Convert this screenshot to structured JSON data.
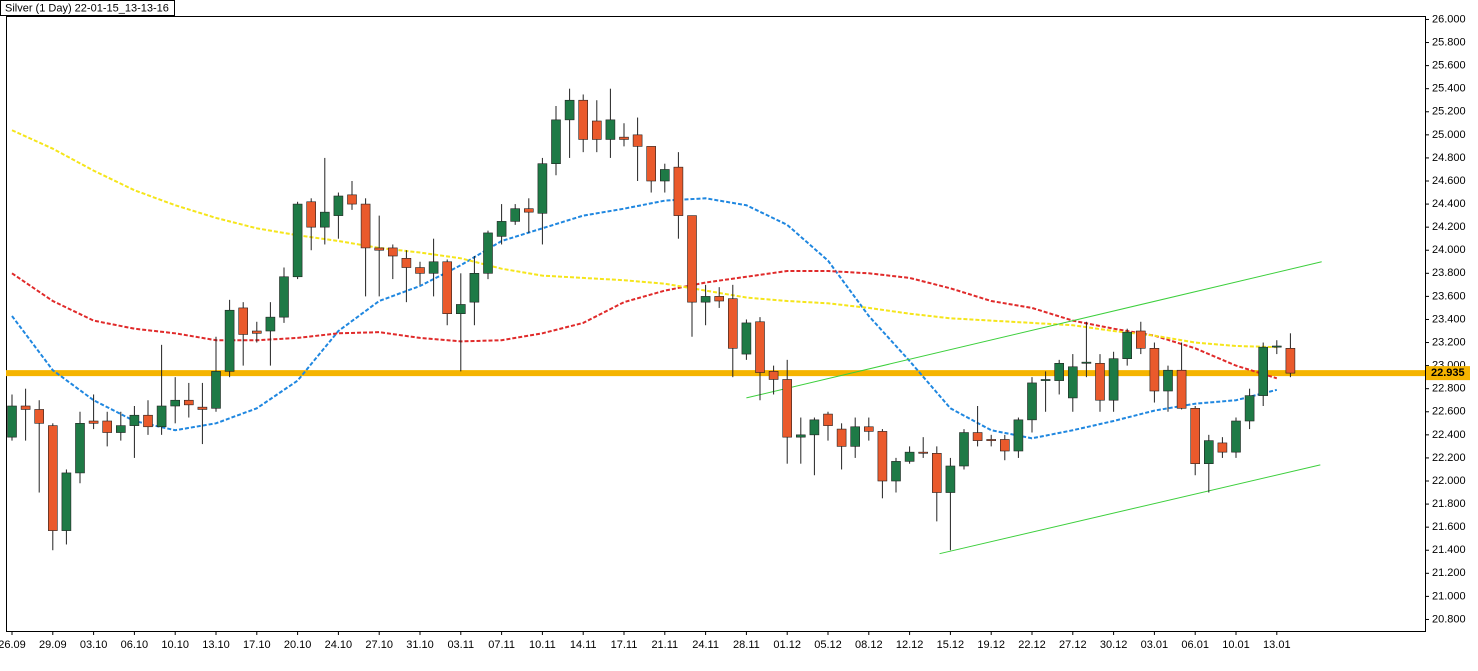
{
  "chart_data": {
    "type": "candlestick",
    "title": "Silver (1 Day) 22-01-15_13-13-16",
    "categories": [
      "26.09",
      null,
      null,
      "29.09",
      null,
      null,
      "03.10",
      null,
      null,
      "06.10",
      null,
      null,
      "10.10",
      null,
      null,
      "13.10",
      null,
      null,
      "17.10",
      null,
      null,
      "20.10",
      null,
      null,
      "24.10",
      null,
      null,
      "27.10",
      null,
      null,
      "31.10",
      null,
      null,
      "03.11",
      null,
      null,
      "07.11",
      null,
      null,
      "10.11",
      null,
      null,
      "14.11",
      null,
      null,
      "17.11",
      null,
      null,
      "21.11",
      null,
      null,
      "24.11",
      null,
      null,
      "28.11",
      null,
      null,
      "01.12",
      null,
      null,
      "05.12",
      null,
      null,
      "08.12",
      null,
      null,
      "12.12",
      null,
      null,
      "15.12",
      null,
      null,
      "19.12",
      null,
      null,
      "22.12",
      null,
      null,
      "27.12",
      null,
      null,
      "30.12",
      null,
      null,
      "03.01",
      null,
      null,
      "06.01",
      null,
      null,
      "10.01",
      null,
      null,
      "13.01",
      null
    ],
    "open": [
      22.38,
      22.65,
      22.62,
      22.48,
      21.57,
      22.07,
      22.52,
      22.52,
      22.42,
      22.48,
      22.57,
      22.47,
      22.65,
      22.7,
      22.64,
      22.63,
      22.95,
      23.5,
      23.3,
      23.3,
      23.42,
      23.77,
      24.42,
      24.2,
      24.3,
      24.48,
      24.4,
      24.02,
      24.02,
      23.93,
      23.85,
      23.8,
      23.9,
      23.45,
      23.55,
      23.8,
      24.12,
      24.25,
      24.36,
      24.32,
      24.75,
      25.13,
      25.3,
      25.12,
      24.96,
      24.98,
      25.0,
      24.9,
      24.6,
      24.72,
      24.3,
      23.55,
      23.6,
      23.58,
      23.1,
      23.38,
      22.95,
      22.88,
      22.38,
      22.4,
      22.58,
      22.45,
      22.3,
      22.47,
      22.43,
      22.0,
      22.17,
      22.25,
      22.24,
      21.9,
      22.13,
      22.42,
      22.36,
      22.36,
      22.26,
      22.53,
      22.87,
      22.87,
      22.72,
      23.02,
      23.02,
      22.7,
      23.06,
      23.3,
      23.15,
      22.78,
      22.96,
      22.63,
      22.15,
      22.33,
      22.25,
      22.52,
      22.74,
      23.16,
      23.15
    ],
    "high": [
      22.75,
      22.8,
      22.7,
      22.5,
      22.1,
      22.6,
      22.75,
      22.6,
      22.6,
      22.65,
      22.7,
      23.18,
      22.9,
      22.85,
      22.85,
      23.25,
      23.57,
      23.55,
      23.38,
      23.55,
      23.85,
      24.42,
      24.45,
      24.8,
      24.5,
      24.6,
      24.45,
      24.3,
      24.05,
      24.0,
      23.9,
      24.1,
      23.92,
      23.8,
      23.95,
      24.17,
      24.4,
      24.4,
      24.45,
      24.8,
      25.25,
      25.4,
      25.35,
      25.3,
      25.4,
      25.1,
      25.15,
      24.9,
      24.75,
      24.85,
      24.3,
      23.7,
      23.68,
      23.7,
      23.4,
      23.42,
      23.0,
      23.05,
      22.55,
      22.55,
      22.6,
      22.5,
      22.55,
      22.55,
      22.45,
      22.2,
      22.3,
      22.38,
      22.3,
      22.2,
      22.45,
      22.65,
      22.4,
      22.4,
      22.55,
      22.9,
      22.95,
      23.05,
      23.1,
      23.38,
      23.1,
      23.12,
      23.32,
      23.38,
      23.2,
      23.0,
      23.2,
      22.65,
      22.4,
      22.38,
      22.55,
      22.8,
      23.2,
      23.22,
      23.28
    ],
    "low": [
      22.35,
      22.35,
      21.9,
      21.4,
      21.45,
      21.98,
      22.45,
      22.3,
      22.35,
      22.2,
      22.4,
      22.4,
      22.5,
      22.55,
      22.32,
      22.6,
      22.9,
      23.0,
      23.2,
      23.0,
      23.37,
      23.75,
      24.0,
      24.05,
      24.1,
      24.35,
      23.6,
      23.6,
      23.75,
      23.55,
      23.7,
      23.6,
      23.35,
      22.95,
      23.35,
      23.75,
      24.05,
      24.22,
      24.15,
      24.05,
      24.65,
      24.8,
      24.85,
      24.85,
      24.8,
      24.9,
      24.6,
      24.5,
      24.5,
      24.1,
      23.25,
      23.35,
      23.5,
      22.9,
      23.05,
      22.7,
      22.75,
      22.15,
      22.15,
      22.05,
      22.35,
      22.1,
      22.2,
      22.35,
      21.85,
      21.9,
      22.15,
      22.2,
      21.65,
      21.4,
      22.1,
      22.3,
      22.3,
      22.18,
      22.2,
      22.42,
      22.6,
      22.75,
      22.6,
      22.9,
      22.6,
      22.6,
      23.0,
      23.1,
      22.68,
      22.6,
      22.62,
      22.05,
      21.9,
      22.2,
      22.2,
      22.45,
      22.65,
      23.1,
      22.9
    ],
    "close": [
      22.65,
      22.62,
      22.5,
      21.57,
      22.07,
      22.5,
      22.5,
      22.42,
      22.48,
      22.57,
      22.47,
      22.65,
      22.7,
      22.66,
      22.62,
      22.95,
      23.48,
      23.27,
      23.28,
      23.42,
      23.77,
      24.4,
      24.2,
      24.33,
      24.47,
      24.4,
      24.02,
      24.0,
      23.95,
      23.85,
      23.8,
      23.9,
      23.45,
      23.53,
      23.8,
      24.15,
      24.25,
      24.36,
      24.33,
      24.75,
      25.13,
      25.3,
      24.96,
      24.96,
      25.13,
      24.96,
      24.9,
      24.6,
      24.7,
      24.3,
      23.55,
      23.6,
      23.56,
      23.15,
      23.37,
      22.94,
      22.88,
      22.38,
      22.4,
      22.53,
      22.48,
      22.3,
      22.47,
      22.43,
      22.0,
      22.17,
      22.25,
      22.24,
      21.9,
      22.13,
      22.42,
      22.35,
      22.35,
      22.26,
      22.53,
      22.85,
      22.88,
      23.02,
      22.99,
      23.03,
      22.7,
      23.06,
      23.29,
      23.15,
      22.78,
      22.96,
      22.63,
      22.15,
      22.35,
      22.25,
      22.52,
      22.74,
      23.16,
      23.17,
      22.935
    ],
    "up_color": "#1e7a46",
    "down_color": "#ea5a2c",
    "indicators": [
      {
        "color": "#1f87e0",
        "values": [
          23.43,
          22.96,
          22.7,
          22.52,
          22.44,
          22.5,
          22.63,
          22.87,
          23.3,
          23.56,
          23.69,
          23.87,
          24.08,
          24.19,
          24.3,
          24.36,
          24.43,
          24.45,
          24.39,
          24.22,
          23.91,
          23.43,
          23.04,
          22.63,
          22.44,
          22.37,
          22.44,
          22.52,
          22.61,
          22.67,
          22.7,
          22.79
        ]
      },
      {
        "color": "#e02a2a",
        "values": [
          23.8,
          23.56,
          23.39,
          23.32,
          23.28,
          23.22,
          23.22,
          23.24,
          23.28,
          23.29,
          23.24,
          23.21,
          23.22,
          23.28,
          23.37,
          23.55,
          23.65,
          23.72,
          23.77,
          23.82,
          23.82,
          23.8,
          23.76,
          23.67,
          23.56,
          23.5,
          23.39,
          23.32,
          23.26,
          23.15,
          23.0,
          22.89
        ]
      },
      {
        "color": "#f5e51a",
        "values": [
          25.04,
          24.88,
          24.69,
          24.52,
          24.39,
          24.28,
          24.19,
          24.13,
          24.08,
          24.02,
          23.98,
          23.93,
          23.84,
          23.78,
          23.76,
          23.74,
          23.71,
          23.65,
          23.59,
          23.56,
          23.54,
          23.5,
          23.45,
          23.41,
          23.39,
          23.37,
          23.35,
          23.3,
          23.26,
          23.2,
          23.17,
          23.16
        ]
      }
    ],
    "trendlines": [
      {
        "color": "#3ccf3c",
        "x": [
          54,
          96.3
        ],
        "values": [
          22.72,
          23.9
        ]
      },
      {
        "color": "#3ccf3c",
        "x": [
          68.2,
          96.2
        ],
        "values": [
          21.37,
          22.14
        ]
      }
    ],
    "price_line": {
      "value": 22.935,
      "color": "#f5b400"
    },
    "ylim": [
      20.7,
      26.03
    ],
    "yticks": [
      {
        "value": 20.8,
        "label": "20.800"
      },
      {
        "value": 21.0,
        "label": "21.000"
      },
      {
        "value": 21.2,
        "label": "21.200"
      },
      {
        "value": 21.4,
        "label": "21.400"
      },
      {
        "value": 21.6,
        "label": "21.600"
      },
      {
        "value": 21.8,
        "label": "21.800"
      },
      {
        "value": 22.0,
        "label": "22.000"
      },
      {
        "value": 22.2,
        "label": "22.200"
      },
      {
        "value": 22.4,
        "label": "22.400"
      },
      {
        "value": 22.6,
        "label": "22.600"
      },
      {
        "value": 22.8,
        "label": "22.800"
      },
      {
        "value": 23.0,
        "label": "23.000"
      },
      {
        "value": 23.2,
        "label": "23.200"
      },
      {
        "value": 23.4,
        "label": "23.400"
      },
      {
        "value": 23.6,
        "label": "23.600"
      },
      {
        "value": 23.8,
        "label": "23.800"
      },
      {
        "value": 24.0,
        "label": "24.000"
      },
      {
        "value": 24.2,
        "label": "24.200"
      },
      {
        "value": 24.4,
        "label": "24.400"
      },
      {
        "value": 24.6,
        "label": "24.600"
      },
      {
        "value": 24.8,
        "label": "24.800"
      },
      {
        "value": 25.0,
        "label": "25.000"
      },
      {
        "value": 25.2,
        "label": "25.200"
      },
      {
        "value": 25.4,
        "label": "25.400"
      },
      {
        "value": 25.6,
        "label": "25.600"
      },
      {
        "value": 25.8,
        "label": "25.800"
      },
      {
        "value": 26.0,
        "label": "26.000"
      }
    ]
  }
}
